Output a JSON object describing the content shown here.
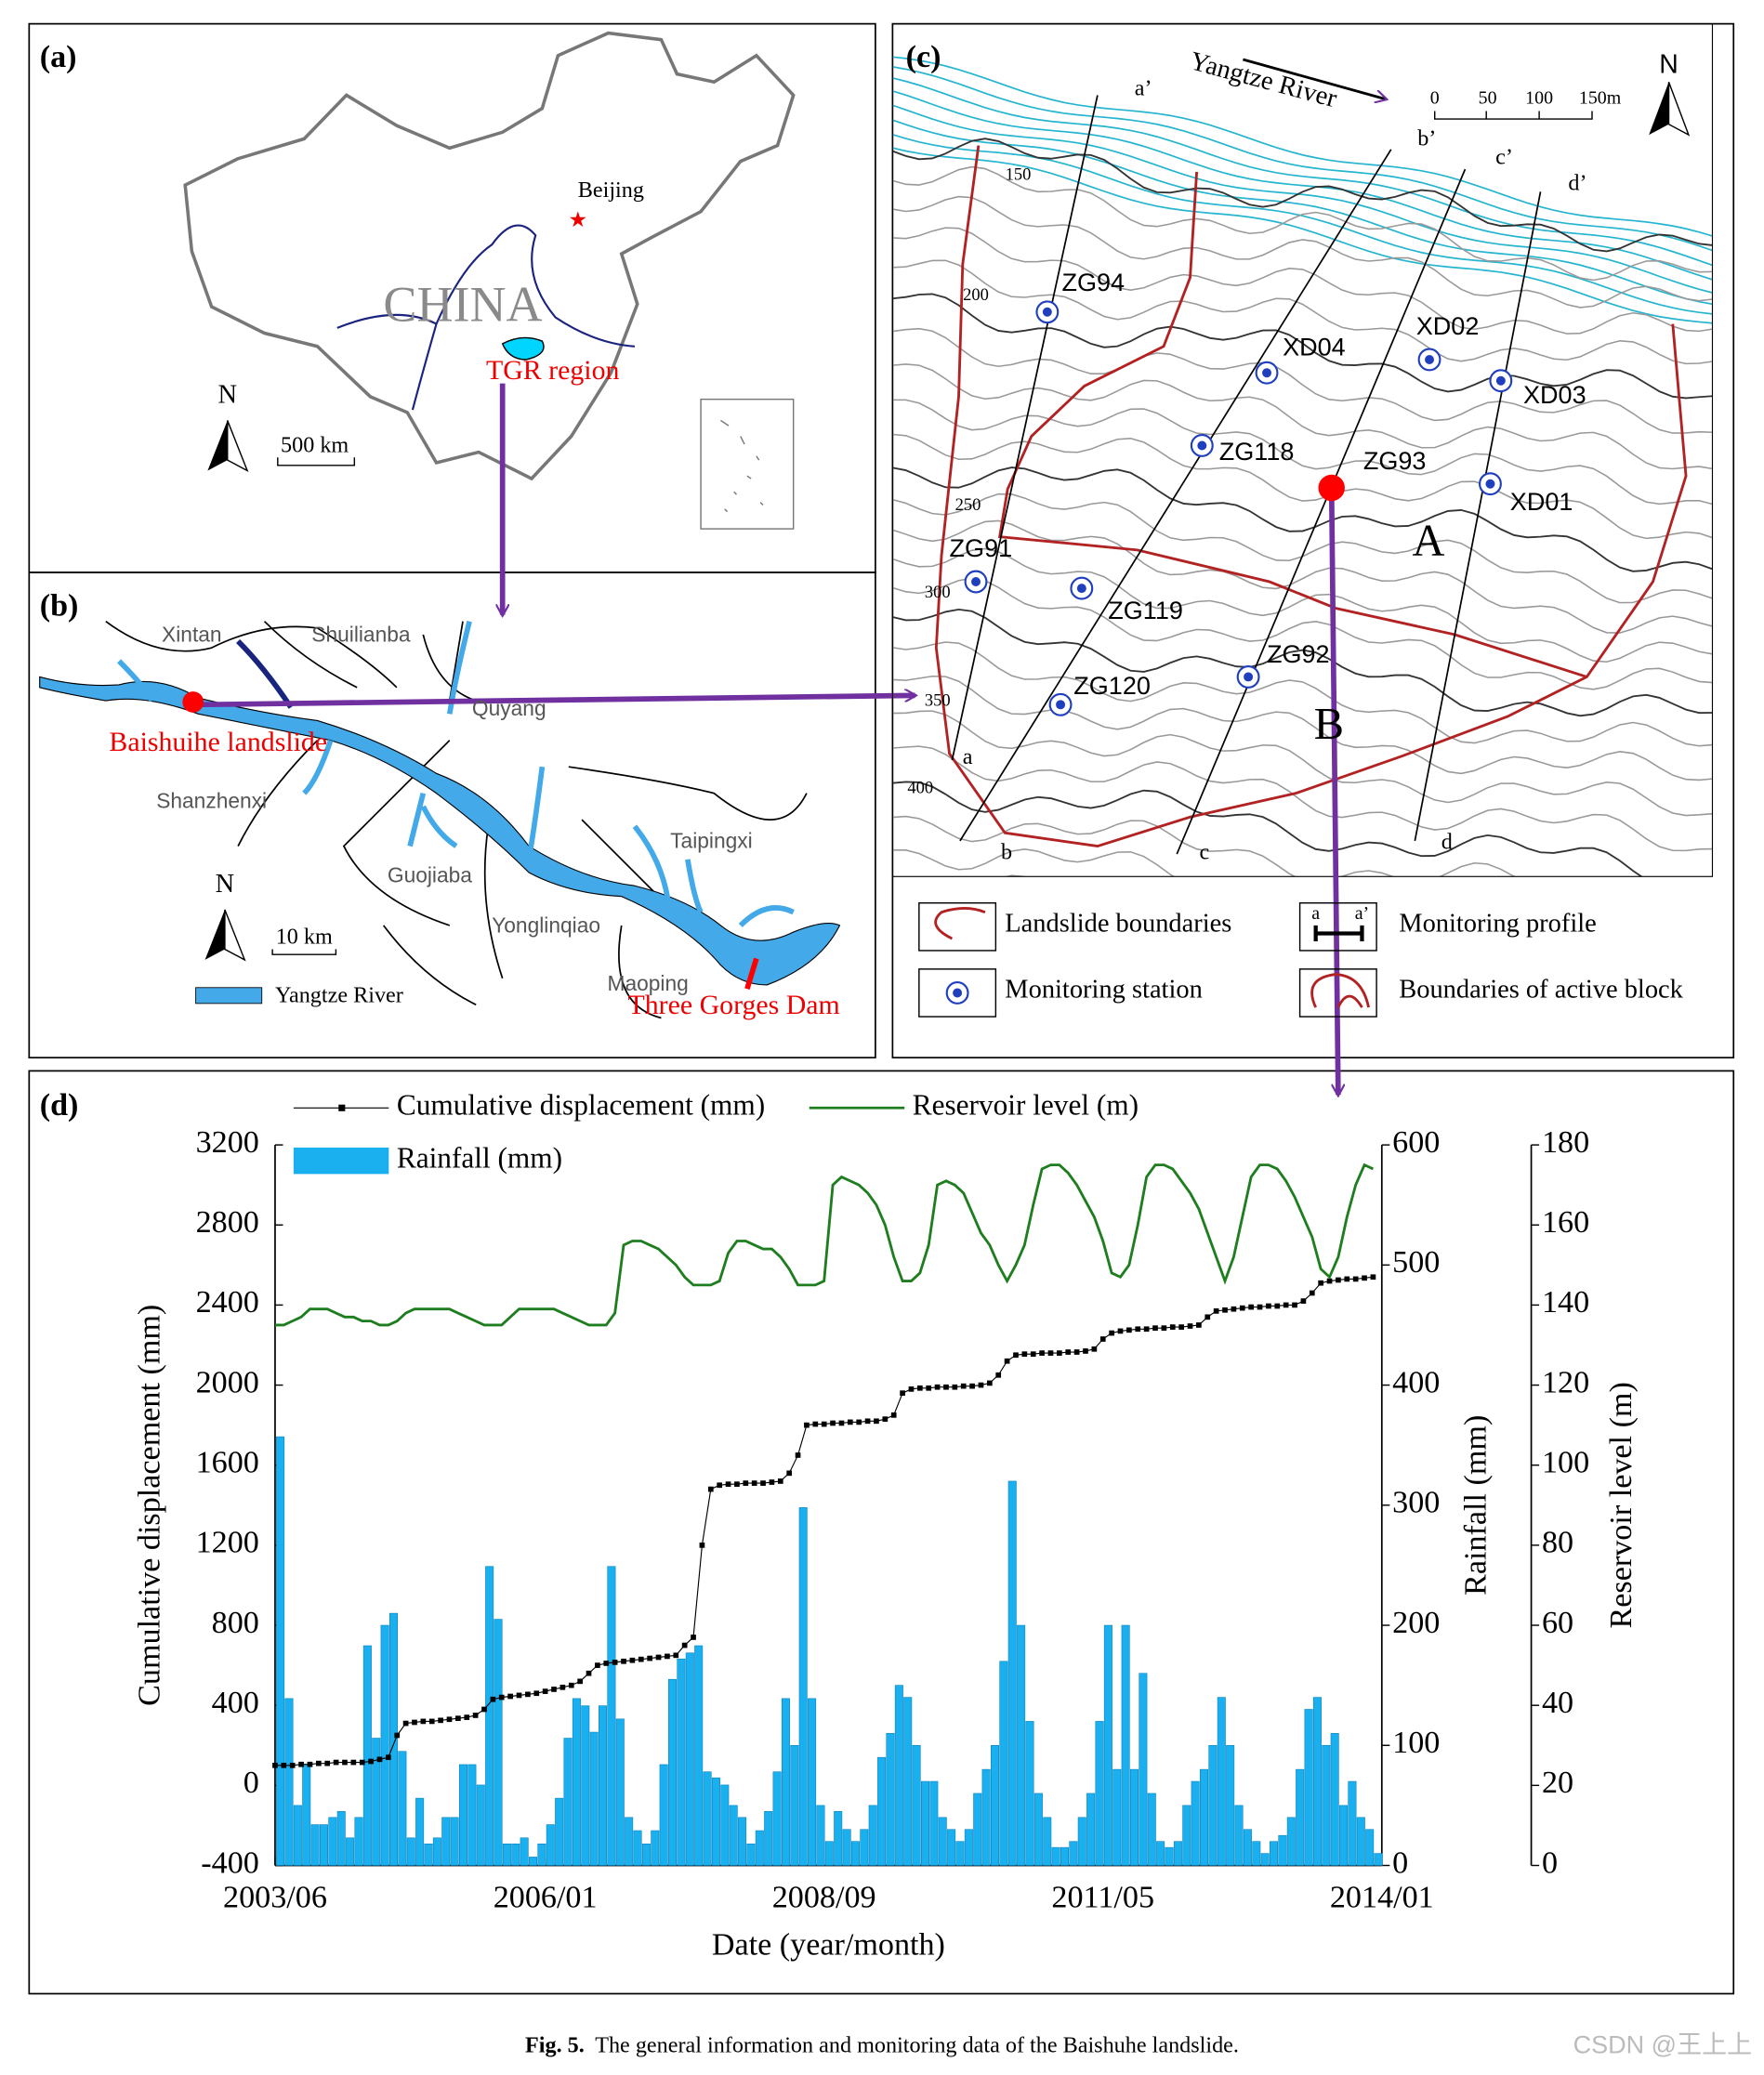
{
  "panels": {
    "a": {
      "label": "(a)",
      "country": "CHINA",
      "city": "Beijing",
      "region": "TGR region",
      "north": "N",
      "scale": "500 km"
    },
    "b": {
      "label": "(b)",
      "places": [
        "Xintan",
        "Shuilianba",
        "Quyang",
        "Shanzhenxi",
        "Guojiaba",
        "Yonglinqiao",
        "Taipingxi",
        "Maoping"
      ],
      "landslide": "Baishuihe landslide",
      "dam": "Three Gorges Dam",
      "north": "N",
      "scale": "10 km",
      "legend": "Yangtze River"
    },
    "c": {
      "label": "(c)",
      "river": "Yangtze River",
      "north": "N",
      "scale_labels": [
        "0",
        "50",
        "100",
        "150m"
      ],
      "stations": [
        "ZG94",
        "XD04",
        "XD02",
        "XD03",
        "ZG118",
        "XD01",
        "ZG91",
        "ZG119",
        "ZG92",
        "ZG120"
      ],
      "landslide_point": "ZG93",
      "blocks": [
        "A",
        "B"
      ],
      "profiles": [
        "a",
        "a’",
        "b",
        "b’",
        "c",
        "c’",
        "d",
        "d’"
      ],
      "contours": [
        "150",
        "200",
        "250",
        "300",
        "350",
        "400"
      ],
      "legend": [
        "Landslide boundaries",
        "Monitoring profile",
        "Monitoring station",
        "Boundaries of active block"
      ],
      "legend_icon": [
        "a",
        "a’"
      ]
    }
  },
  "chart_data": {
    "type": "combo",
    "panel_label": "(d)",
    "xlabel": "Date (year/month)",
    "ylabel": "Cumulative displacement (mm)",
    "y2label": "Rainfall (mm)",
    "y3label": "Reservoir level (m)",
    "x": [
      "2003/06",
      "2003/07",
      "2003/08",
      "2003/09",
      "2003/10",
      "2003/11",
      "2003/12",
      "2004/01",
      "2004/02",
      "2004/03",
      "2004/04",
      "2004/05",
      "2004/06",
      "2004/07",
      "2004/08",
      "2004/09",
      "2004/10",
      "2004/11",
      "2004/12",
      "2005/01",
      "2005/02",
      "2005/03",
      "2005/04",
      "2005/05",
      "2005/06",
      "2005/07",
      "2005/08",
      "2005/09",
      "2005/10",
      "2005/11",
      "2005/12",
      "2006/01",
      "2006/02",
      "2006/03",
      "2006/04",
      "2006/05",
      "2006/06",
      "2006/07",
      "2006/08",
      "2006/09",
      "2006/10",
      "2006/11",
      "2006/12",
      "2007/01",
      "2007/02",
      "2007/03",
      "2007/04",
      "2007/05",
      "2007/06",
      "2007/07",
      "2007/08",
      "2007/09",
      "2007/10",
      "2007/11",
      "2007/12",
      "2008/01",
      "2008/02",
      "2008/03",
      "2008/04",
      "2008/05",
      "2008/06",
      "2008/07",
      "2008/08",
      "2008/09",
      "2008/10",
      "2008/11",
      "2008/12",
      "2009/01",
      "2009/02",
      "2009/03",
      "2009/04",
      "2009/05",
      "2009/06",
      "2009/07",
      "2009/08",
      "2009/09",
      "2009/10",
      "2009/11",
      "2009/12",
      "2010/01",
      "2010/02",
      "2010/03",
      "2010/04",
      "2010/05",
      "2010/06",
      "2010/07",
      "2010/08",
      "2010/09",
      "2010/10",
      "2010/11",
      "2010/12",
      "2011/01",
      "2011/02",
      "2011/03",
      "2011/04",
      "2011/05",
      "2011/06",
      "2011/07",
      "2011/08",
      "2011/09",
      "2011/10",
      "2011/11",
      "2011/12",
      "2012/01",
      "2012/02",
      "2012/03",
      "2012/04",
      "2012/05",
      "2012/06",
      "2012/07",
      "2012/08",
      "2012/09",
      "2012/10",
      "2012/11",
      "2012/12",
      "2013/01",
      "2013/02",
      "2013/03",
      "2013/04",
      "2013/05",
      "2013/06",
      "2013/07",
      "2013/08",
      "2013/09",
      "2013/10",
      "2013/11",
      "2013/12"
    ],
    "xlim": [
      "2003/06",
      "2014/01"
    ],
    "xticks": [
      "2003/06",
      "2006/01",
      "2008/09",
      "2011/05",
      "2014/01"
    ],
    "ylim": [
      -400,
      3200
    ],
    "yticks": [
      -400,
      0,
      400,
      800,
      1200,
      1600,
      2000,
      2400,
      2800,
      3200
    ],
    "y2lim": [
      0,
      600
    ],
    "y2ticks": [
      0,
      100,
      200,
      300,
      400,
      500,
      600
    ],
    "y3lim": [
      0,
      180
    ],
    "y3ticks": [
      0,
      20,
      40,
      60,
      80,
      100,
      120,
      140,
      160,
      180
    ],
    "series": [
      {
        "name": "Cumulative displacement (mm)",
        "type": "line",
        "color": "#000000",
        "axis": "y",
        "values": [
          100,
          100,
          100,
          105,
          105,
          110,
          110,
          115,
          115,
          115,
          115,
          120,
          130,
          140,
          250,
          310,
          315,
          320,
          320,
          325,
          330,
          335,
          340,
          350,
          380,
          430,
          440,
          445,
          450,
          455,
          460,
          470,
          480,
          490,
          500,
          520,
          560,
          600,
          610,
          615,
          620,
          625,
          630,
          635,
          640,
          645,
          650,
          700,
          740,
          1200,
          1480,
          1500,
          1505,
          1505,
          1510,
          1510,
          1510,
          1515,
          1520,
          1560,
          1650,
          1800,
          1805,
          1805,
          1810,
          1810,
          1815,
          1815,
          1820,
          1820,
          1830,
          1850,
          1960,
          1980,
          1985,
          1985,
          1990,
          1990,
          1990,
          1995,
          1995,
          2000,
          2010,
          2050,
          2120,
          2150,
          2155,
          2155,
          2160,
          2160,
          2160,
          2165,
          2165,
          2170,
          2180,
          2230,
          2260,
          2270,
          2275,
          2280,
          2280,
          2285,
          2285,
          2290,
          2290,
          2295,
          2300,
          2340,
          2370,
          2375,
          2380,
          2385,
          2390,
          2390,
          2395,
          2395,
          2400,
          2400,
          2420,
          2460,
          2510,
          2520,
          2525,
          2530,
          2530,
          2535,
          2540
        ]
      },
      {
        "name": "Reservoir level (m)",
        "type": "line",
        "color": "#1e7d1e",
        "axis": "y3",
        "values": [
          135,
          135,
          136,
          137,
          139,
          139,
          139,
          138,
          137,
          137,
          136,
          136,
          135,
          135,
          136,
          138,
          139,
          139,
          139,
          139,
          139,
          138,
          137,
          136,
          135,
          135,
          135,
          137,
          139,
          139,
          139,
          139,
          139,
          138,
          137,
          136,
          135,
          135,
          135,
          138,
          155,
          156,
          156,
          155,
          154,
          152,
          150,
          147,
          145,
          145,
          145,
          146,
          153,
          156,
          156,
          155,
          154,
          154,
          152,
          149,
          145,
          145,
          145,
          146,
          170,
          172,
          171,
          170,
          168,
          165,
          160,
          152,
          146,
          146,
          148,
          155,
          170,
          171,
          170,
          168,
          163,
          158,
          155,
          150,
          146,
          150,
          155,
          165,
          174,
          175,
          175,
          173,
          170,
          166,
          162,
          156,
          148,
          147,
          150,
          160,
          172,
          175,
          175,
          174,
          171,
          168,
          164,
          158,
          152,
          146,
          152,
          162,
          172,
          175,
          175,
          174,
          171,
          167,
          162,
          157,
          149,
          147,
          152,
          162,
          170,
          175,
          174
        ]
      },
      {
        "name": "Rainfall (mm)",
        "type": "bar",
        "color": "#1ab0f0",
        "axis": "y2",
        "values": [
          357,
          139,
          50,
          84,
          34,
          34,
          40,
          45,
          23,
          40,
          183,
          106,
          200,
          210,
          95,
          23,
          56,
          18,
          23,
          40,
          40,
          84,
          84,
          67,
          249,
          205,
          18,
          18,
          23,
          7,
          18,
          34,
          56,
          106,
          139,
          133,
          111,
          133,
          249,
          122,
          40,
          29,
          18,
          29,
          84,
          155,
          172,
          177,
          183,
          78,
          73,
          67,
          50,
          40,
          18,
          29,
          45,
          78,
          139,
          100,
          298,
          139,
          50,
          20,
          45,
          30,
          20,
          30,
          50,
          90,
          110,
          150,
          140,
          100,
          70,
          70,
          40,
          30,
          20,
          30,
          60,
          80,
          100,
          170,
          320,
          200,
          120,
          60,
          40,
          15,
          15,
          20,
          40,
          60,
          120,
          200,
          80,
          200,
          80,
          160,
          60,
          20,
          15,
          20,
          50,
          70,
          80,
          100,
          140,
          100,
          50,
          30,
          20,
          10,
          20,
          25,
          40,
          80,
          130,
          140,
          100,
          110,
          50,
          70,
          40,
          30,
          10
        ]
      }
    ]
  },
  "caption": {
    "label": "Fig. 5.",
    "text": "The general information and monitoring data of the Baishuhe landslide."
  },
  "watermark": "CSDN @王上上"
}
